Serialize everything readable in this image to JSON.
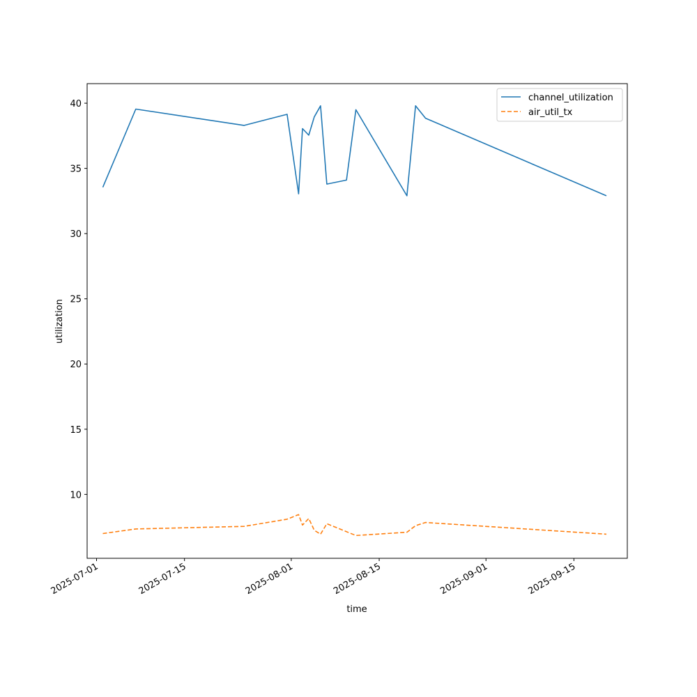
{
  "chart_data": {
    "type": "line",
    "title": "",
    "xlabel": "time",
    "ylabel": "utilization",
    "x_axis_type": "date",
    "xlim": [
      "2025-06-29T12:00",
      "2025-09-23T12:00"
    ],
    "ylim": [
      5.1,
      41.5
    ],
    "x_ticks": [
      "2025-07-01",
      "2025-07-15",
      "2025-08-01",
      "2025-08-15",
      "2025-09-01",
      "2025-09-15"
    ],
    "y_ticks": [
      10,
      15,
      20,
      25,
      30,
      35,
      40
    ],
    "grid": false,
    "legend_position": "top-right",
    "series": [
      {
        "name": "channel_utilization",
        "color": "#1f77b4",
        "line_style": "solid",
        "points": [
          [
            "2025-07-02T00:00",
            33.55
          ],
          [
            "2025-07-07T06:00",
            39.55
          ],
          [
            "2025-07-24T12:00",
            38.3
          ],
          [
            "2025-07-31T08:00",
            39.15
          ],
          [
            "2025-08-02T04:00",
            33.05
          ],
          [
            "2025-08-02T19:00",
            38.05
          ],
          [
            "2025-08-03T19:00",
            37.55
          ],
          [
            "2025-08-04T16:00",
            38.95
          ],
          [
            "2025-08-05T16:00",
            39.8
          ],
          [
            "2025-08-06T16:00",
            33.8
          ],
          [
            "2025-08-09T19:00",
            34.1
          ],
          [
            "2025-08-11T07:00",
            39.5
          ],
          [
            "2025-08-19T10:00",
            32.9
          ],
          [
            "2025-08-20T19:00",
            39.8
          ],
          [
            "2025-08-22T09:00",
            38.85
          ],
          [
            "2025-09-20T04:00",
            32.9
          ]
        ]
      },
      {
        "name": "air_util_tx",
        "color": "#ff7f0e",
        "line_style": "dashed",
        "points": [
          [
            "2025-07-02T00:00",
            7.0
          ],
          [
            "2025-07-07T06:00",
            7.35
          ],
          [
            "2025-07-24T12:00",
            7.55
          ],
          [
            "2025-07-31T08:00",
            8.1
          ],
          [
            "2025-08-02T04:00",
            8.45
          ],
          [
            "2025-08-02T19:00",
            7.65
          ],
          [
            "2025-08-03T19:00",
            8.15
          ],
          [
            "2025-08-04T16:00",
            7.25
          ],
          [
            "2025-08-05T16:00",
            6.95
          ],
          [
            "2025-08-06T16:00",
            7.75
          ],
          [
            "2025-08-11T07:00",
            6.85
          ],
          [
            "2025-08-19T10:00",
            7.1
          ],
          [
            "2025-08-20T19:00",
            7.6
          ],
          [
            "2025-08-22T09:00",
            7.85
          ],
          [
            "2025-09-20T04:00",
            6.95
          ]
        ]
      }
    ]
  }
}
